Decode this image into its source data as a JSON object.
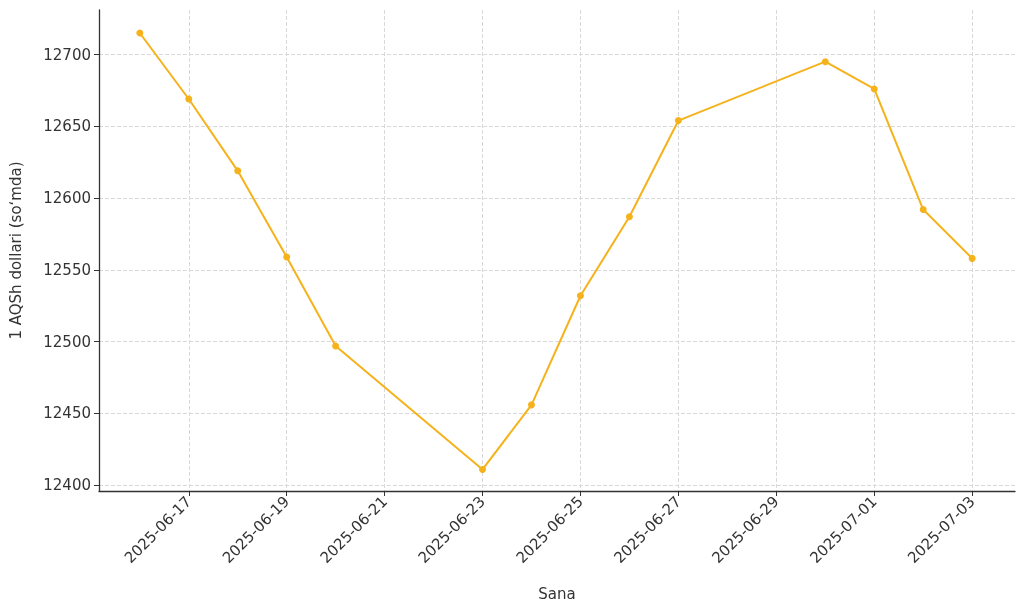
{
  "chart_data": {
    "type": "line",
    "xlabel": "Sana",
    "ylabel": "1 AQSh dollari (soʻmda)",
    "x": [
      "2025-06-16",
      "2025-06-17",
      "2025-06-18",
      "2025-06-19",
      "2025-06-20",
      "2025-06-23",
      "2025-06-24",
      "2025-06-25",
      "2025-06-26",
      "2025-06-27",
      "2025-06-30",
      "2025-07-01",
      "2025-07-02",
      "2025-07-03"
    ],
    "series": [
      {
        "color": "#f5b21b",
        "values": [
          12715,
          12669,
          12619,
          12559,
          12497,
          12411,
          12456,
          12532,
          12587,
          12654,
          12695,
          12676,
          12592,
          12558
        ]
      }
    ],
    "xlim": [
      "2025-06-15T04:00",
      "2025-07-03T21:00"
    ],
    "xticks": [
      "2025-06-17",
      "2025-06-19",
      "2025-06-21",
      "2025-06-23",
      "2025-06-25",
      "2025-06-27",
      "2025-06-29",
      "2025-07-01",
      "2025-07-03"
    ],
    "ylim": [
      12396,
      12731
    ],
    "yticks": [
      12400,
      12450,
      12500,
      12550,
      12600,
      12650,
      12700
    ],
    "grid": true,
    "marker": "circle",
    "line_style": "solid"
  }
}
